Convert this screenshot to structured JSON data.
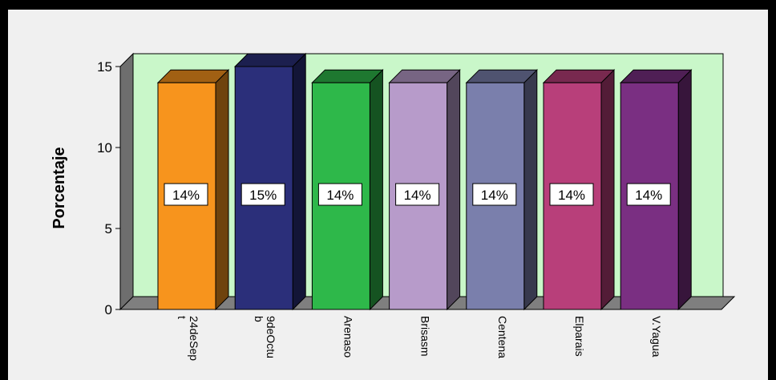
{
  "chart_data": {
    "type": "bar",
    "ylabel": "Porcentaje",
    "ylim": [
      0,
      15
    ],
    "yticks": [
      0,
      5,
      10,
      15
    ],
    "categories": [
      "24deSep t",
      "9deOctu b",
      "Arenaso",
      "Brisasm",
      "Centena",
      "Elparais",
      "V.Yagua"
    ],
    "values": [
      14,
      15,
      14,
      14,
      14,
      14,
      14
    ],
    "data_labels": [
      "14%",
      "15%",
      "14%",
      "14%",
      "14%",
      "14%",
      "14%"
    ],
    "colors": [
      "#f7941d",
      "#2b2f7a",
      "#2eb84a",
      "#b79bca",
      "#7a7fac",
      "#b83f7a",
      "#7a2f82"
    ],
    "plot_background": "#c9f7c9",
    "floor_color": "#7f7f7f"
  }
}
